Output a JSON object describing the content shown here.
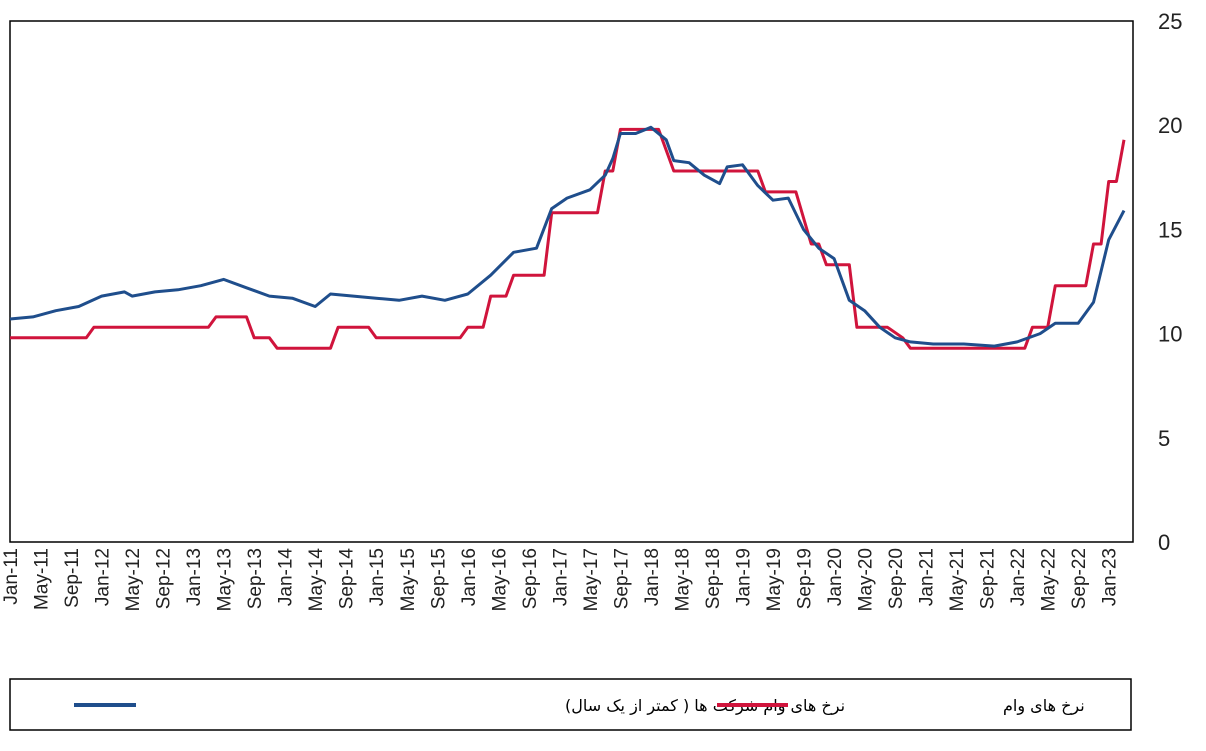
{
  "chart_data": {
    "type": "line",
    "ylim": [
      0,
      25
    ],
    "yticks": [
      "25",
      "20",
      "15",
      "10",
      "5",
      "0"
    ],
    "xlim": [
      "2011-01",
      "2023-03"
    ],
    "xtick_labels": [
      "Jan-11",
      "May-11",
      "Sep-11",
      "Jan-12",
      "May-12",
      "Sep-12",
      "Jan-13",
      "May-13",
      "Sep-13",
      "Jan-14",
      "May-14",
      "Sep-14",
      "Jan-15",
      "May-15",
      "Sep-15",
      "Jan-16",
      "May-16",
      "Sep-16",
      "Jan-17",
      "May-17",
      "Sep-17",
      "Jan-18",
      "May-18",
      "Sep-18",
      "Jan-19",
      "May-19",
      "Sep-19",
      "Jan-20",
      "May-20",
      "Sep-20",
      "Jan-21",
      "May-21",
      "Sep-21",
      "Jan-22",
      "May-22",
      "Sep-22",
      "Jan-23"
    ],
    "grid": false,
    "legend_position": "bottom",
    "series": [
      {
        "name": "نرخ های وام شرکت ها ( کمتر از یک سال)",
        "color": "#1f4e8c",
        "points": [
          [
            "2011-01",
            10.7
          ],
          [
            "2011-04",
            10.8
          ],
          [
            "2011-07",
            11.1
          ],
          [
            "2011-10",
            11.3
          ],
          [
            "2012-01",
            11.8
          ],
          [
            "2012-04",
            12.0
          ],
          [
            "2012-05",
            11.8
          ],
          [
            "2012-08",
            12.0
          ],
          [
            "2012-11",
            12.1
          ],
          [
            "2013-02",
            12.3
          ],
          [
            "2013-05",
            12.6
          ],
          [
            "2013-08",
            12.2
          ],
          [
            "2013-11",
            11.8
          ],
          [
            "2014-02",
            11.7
          ],
          [
            "2014-05",
            11.3
          ],
          [
            "2014-07",
            11.9
          ],
          [
            "2014-10",
            11.8
          ],
          [
            "2015-01",
            11.7
          ],
          [
            "2015-04",
            11.6
          ],
          [
            "2015-07",
            11.8
          ],
          [
            "2015-10",
            11.6
          ],
          [
            "2016-01",
            11.9
          ],
          [
            "2016-04",
            12.8
          ],
          [
            "2016-07",
            13.9
          ],
          [
            "2016-10",
            14.1
          ],
          [
            "2016-12",
            16.0
          ],
          [
            "2017-02",
            16.5
          ],
          [
            "2017-05",
            16.9
          ],
          [
            "2017-07",
            17.6
          ],
          [
            "2017-08",
            18.4
          ],
          [
            "2017-09",
            19.6
          ],
          [
            "2017-11",
            19.6
          ],
          [
            "2018-01",
            19.9
          ],
          [
            "2018-03",
            19.3
          ],
          [
            "2018-04",
            18.3
          ],
          [
            "2018-06",
            18.2
          ],
          [
            "2018-08",
            17.6
          ],
          [
            "2018-10",
            17.2
          ],
          [
            "2018-11",
            18.0
          ],
          [
            "2019-01",
            18.1
          ],
          [
            "2019-03",
            17.1
          ],
          [
            "2019-05",
            16.4
          ],
          [
            "2019-07",
            16.5
          ],
          [
            "2019-09",
            15.0
          ],
          [
            "2019-11",
            14.1
          ],
          [
            "2020-01",
            13.6
          ],
          [
            "2020-03",
            11.6
          ],
          [
            "2020-05",
            11.1
          ],
          [
            "2020-07",
            10.3
          ],
          [
            "2020-09",
            9.8
          ],
          [
            "2020-11",
            9.6
          ],
          [
            "2021-02",
            9.5
          ],
          [
            "2021-06",
            9.5
          ],
          [
            "2021-10",
            9.4
          ],
          [
            "2022-01",
            9.6
          ],
          [
            "2022-04",
            10.0
          ],
          [
            "2022-06",
            10.5
          ],
          [
            "2022-09",
            10.5
          ],
          [
            "2022-11",
            11.5
          ],
          [
            "2023-01",
            14.5
          ],
          [
            "2023-03",
            15.9
          ]
        ]
      },
      {
        "name": "نرخ های وام",
        "color": "#d0143c",
        "points": [
          [
            "2011-01",
            9.8
          ],
          [
            "2011-11",
            9.8
          ],
          [
            "2011-12",
            10.3
          ],
          [
            "2013-03",
            10.3
          ],
          [
            "2013-04",
            10.8
          ],
          [
            "2013-08",
            10.8
          ],
          [
            "2013-09",
            9.8
          ],
          [
            "2013-11",
            9.8
          ],
          [
            "2013-12",
            9.3
          ],
          [
            "2014-07",
            9.3
          ],
          [
            "2014-08",
            10.3
          ],
          [
            "2014-12",
            10.3
          ],
          [
            "2015-01",
            9.8
          ],
          [
            "2015-12",
            9.8
          ],
          [
            "2016-01",
            10.3
          ],
          [
            "2016-03",
            10.3
          ],
          [
            "2016-04",
            11.8
          ],
          [
            "2016-06",
            11.8
          ],
          [
            "2016-07",
            12.8
          ],
          [
            "2016-11",
            12.8
          ],
          [
            "2016-12",
            15.8
          ],
          [
            "2017-06",
            15.8
          ],
          [
            "2017-07",
            17.8
          ],
          [
            "2017-08",
            17.8
          ],
          [
            "2017-09",
            19.8
          ],
          [
            "2018-02",
            19.8
          ],
          [
            "2018-04",
            17.8
          ],
          [
            "2018-08",
            17.8
          ],
          [
            "2018-09",
            17.8
          ],
          [
            "2019-03",
            17.8
          ],
          [
            "2019-04",
            16.8
          ],
          [
            "2019-08",
            16.8
          ],
          [
            "2019-10",
            14.3
          ],
          [
            "2019-11",
            14.3
          ],
          [
            "2019-12",
            13.3
          ],
          [
            "2020-03",
            13.3
          ],
          [
            "2020-04",
            10.3
          ],
          [
            "2020-08",
            10.3
          ],
          [
            "2020-10",
            9.8
          ],
          [
            "2020-11",
            9.3
          ],
          [
            "2022-02",
            9.3
          ],
          [
            "2022-03",
            10.3
          ],
          [
            "2022-05",
            10.3
          ],
          [
            "2022-06",
            12.3
          ],
          [
            "2022-10",
            12.3
          ],
          [
            "2022-11",
            14.3
          ],
          [
            "2022-12",
            14.3
          ],
          [
            "2023-01",
            17.3
          ],
          [
            "2023-02",
            17.3
          ],
          [
            "2023-03",
            19.3
          ]
        ]
      }
    ]
  }
}
